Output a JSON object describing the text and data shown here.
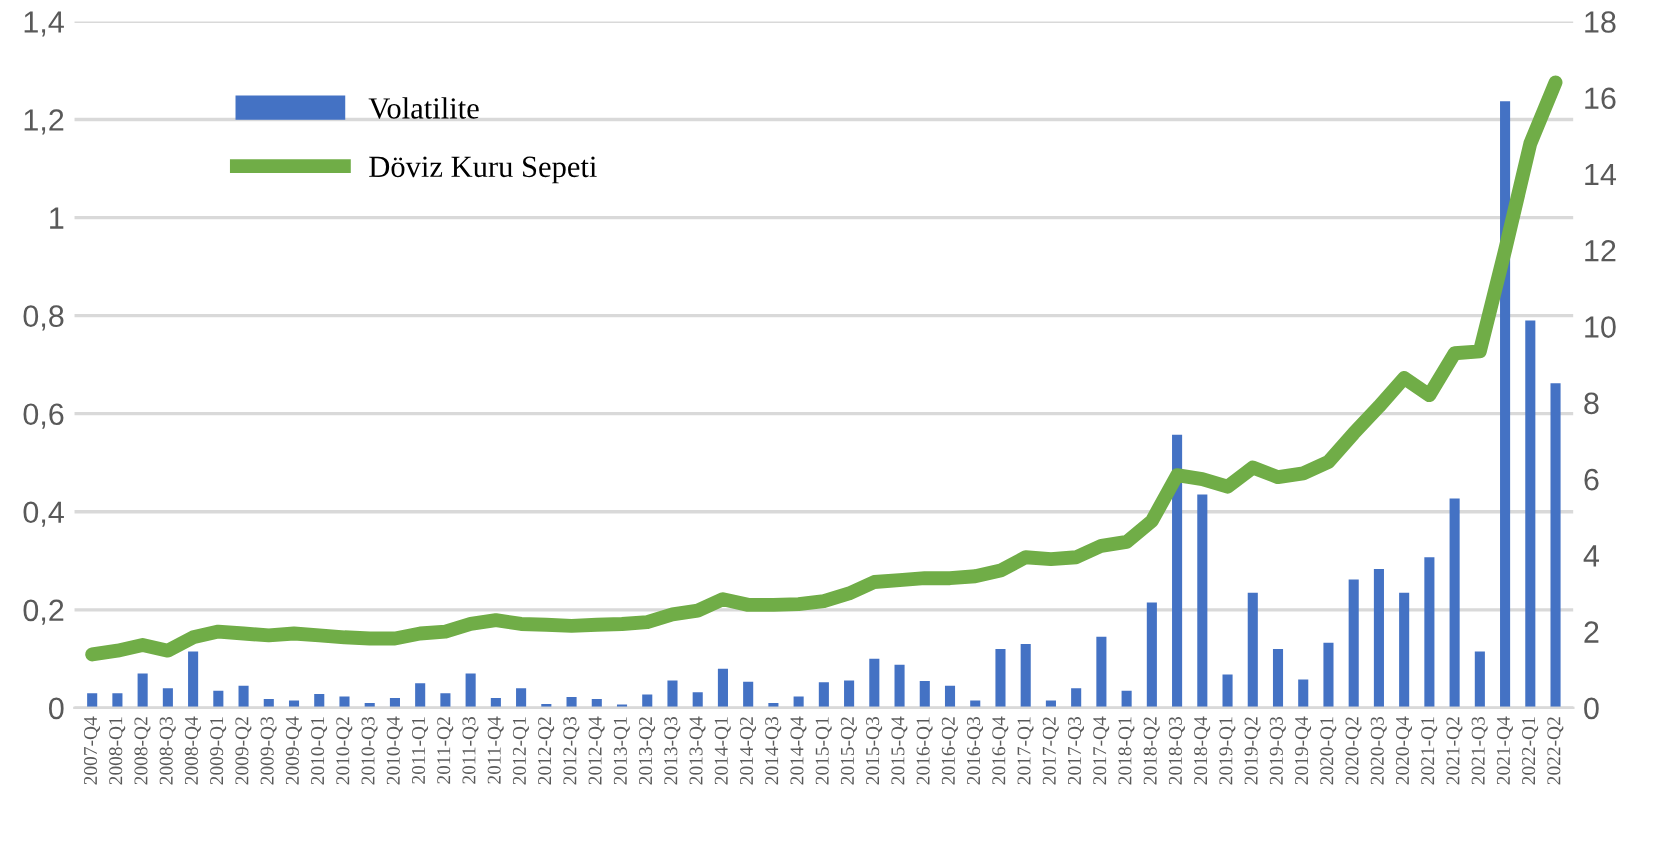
{
  "chart_data": {
    "type": "bar",
    "categories": [
      "2007-Q4",
      "2008-Q1",
      "2008-Q2",
      "2008-Q3",
      "2008-Q4",
      "2009-Q1",
      "2009-Q2",
      "2009-Q3",
      "2009-Q4",
      "2010-Q1",
      "2010-Q2",
      "2010-Q3",
      "2010-Q4",
      "2011-Q1",
      "2011-Q2",
      "2011-Q3",
      "2011-Q4",
      "2012-Q1",
      "2012-Q2",
      "2012-Q3",
      "2012-Q4",
      "2013-Q1",
      "2013-Q2",
      "2013-Q3",
      "2013-Q4",
      "2014-Q1",
      "2014-Q2",
      "2014-Q3",
      "2014-Q4",
      "2015-Q1",
      "2015-Q2",
      "2015-Q3",
      "2015-Q4",
      "2016-Q1",
      "2016-Q2",
      "2016-Q3",
      "2016-Q4",
      "2017-Q1",
      "2017-Q2",
      "2017-Q3",
      "2017-Q4",
      "2018-Q1",
      "2018-Q2",
      "2018-Q3",
      "2018-Q4",
      "2019-Q1",
      "2019-Q2",
      "2019-Q3",
      "2019-Q4",
      "2020-Q1",
      "2020-Q2",
      "2020-Q3",
      "2020-Q4",
      "2021-Q1",
      "2021-Q2",
      "2021-Q3",
      "2021-Q4",
      "2022-Q1",
      "2022-Q2"
    ],
    "series": [
      {
        "name": "Volatilite",
        "color": "#4472c4",
        "values": [
          0.03,
          0.03,
          0.07,
          0.04,
          0.115,
          0.035,
          0.045,
          0.018,
          0.015,
          0.028,
          0.023,
          0.01,
          0.02,
          0.05,
          0.03,
          0.07,
          0.02,
          0.04,
          0.008,
          0.022,
          0.018,
          0.007,
          0.027,
          0.056,
          0.032,
          0.08,
          0.053,
          0.01,
          0.023,
          0.052,
          0.056,
          0.1,
          0.088,
          0.055,
          0.045,
          0.015,
          0.12,
          0.13,
          0.015,
          0.04,
          0.145,
          0.035,
          0.215,
          0.557,
          0.435,
          0.068,
          0.235,
          0.12,
          0.058,
          0.133,
          0.262,
          0.283,
          0.235,
          0.307,
          0.427,
          0.115,
          1.237,
          0.79,
          0.662
        ]
      },
      {
        "name": "Döviz Kuru Sepeti",
        "type": "line",
        "axis": "y2",
        "color": "#70ad47",
        "values": [
          1.4,
          1.5,
          1.65,
          1.5,
          1.85,
          2.0,
          1.95,
          1.9,
          1.95,
          1.9,
          1.85,
          1.82,
          1.82,
          1.95,
          2.0,
          2.2,
          2.3,
          2.2,
          2.18,
          2.15,
          2.18,
          2.2,
          2.25,
          2.45,
          2.55,
          2.85,
          2.7,
          2.7,
          2.72,
          2.8,
          3.0,
          3.3,
          3.35,
          3.4,
          3.4,
          3.45,
          3.6,
          3.95,
          3.9,
          3.95,
          4.25,
          4.35,
          4.9,
          6.1,
          6.0,
          5.8,
          6.3,
          6.05,
          6.15,
          6.45,
          7.2,
          7.9,
          8.65,
          8.2,
          9.3,
          9.35,
          12.0,
          14.8,
          16.4
        ]
      }
    ],
    "ylim": [
      0,
      1.4
    ],
    "yticks": [
      0,
      {
        "value": 0.2,
        "label": "0,2"
      },
      {
        "value": 0.4,
        "label": "0,4"
      },
      {
        "value": 0.6,
        "label": "0,6"
      },
      {
        "value": 0.8,
        "label": "0,8"
      },
      1,
      {
        "value": 1.2,
        "label": "1,2"
      },
      {
        "value": 1.4,
        "label": "1,4"
      }
    ],
    "y2lim": [
      0,
      18
    ],
    "y2ticks": [
      0,
      2,
      4,
      6,
      8,
      10,
      12,
      14,
      16,
      18
    ],
    "grid": "y",
    "legend": "top left",
    "marker": "none",
    "line_style": "solid"
  }
}
